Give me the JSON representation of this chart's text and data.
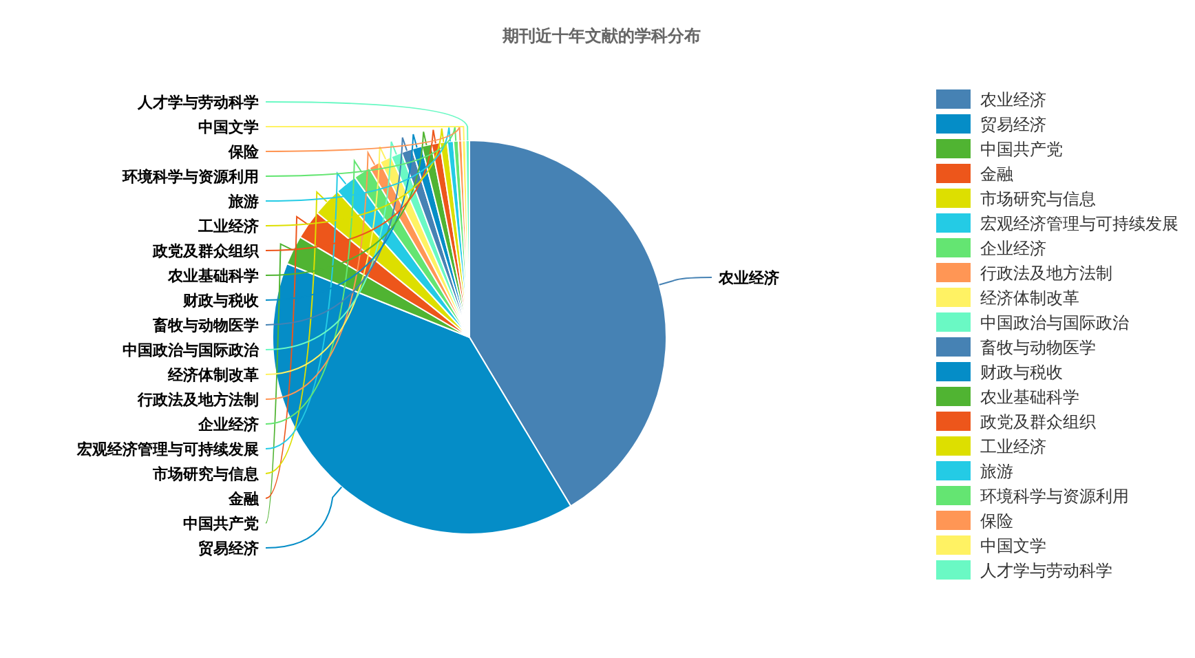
{
  "chart_data": {
    "type": "pie",
    "title": "期刊近十年文献的学科分布",
    "categories": [
      "农业经济",
      "贸易经济",
      "中国共产党",
      "金融",
      "市场研究与信息",
      "宏观经济管理与可持续发展",
      "企业经济",
      "行政法及地方法制",
      "经济体制改革",
      "中国政治与国际政治",
      "畜牧与动物医学",
      "财政与税收",
      "农业基础科学",
      "政党及群众组织",
      "工业经济",
      "旅游",
      "环境科学与资源利用",
      "保险",
      "中国文学",
      "人才学与劳动科学"
    ],
    "values": [
      41.4,
      39.7,
      2.4,
      2.4,
      2.4,
      1.8,
      1.4,
      1.0,
      1.0,
      0.9,
      0.9,
      0.8,
      0.8,
      0.7,
      0.6,
      0.5,
      0.4,
      0.3,
      0.3,
      0.3
    ],
    "colors": [
      "#4682b4",
      "#058dc7",
      "#50b432",
      "#ed561b",
      "#dddf00",
      "#24cbe5",
      "#64e572",
      "#ff9655",
      "#fff263",
      "#6af9c4",
      "#4682b4",
      "#058dc7",
      "#50b432",
      "#ed561b",
      "#dddf00",
      "#24cbe5",
      "#64e572",
      "#ff9655",
      "#fff263",
      "#6af9c4"
    ],
    "legend": "right"
  }
}
